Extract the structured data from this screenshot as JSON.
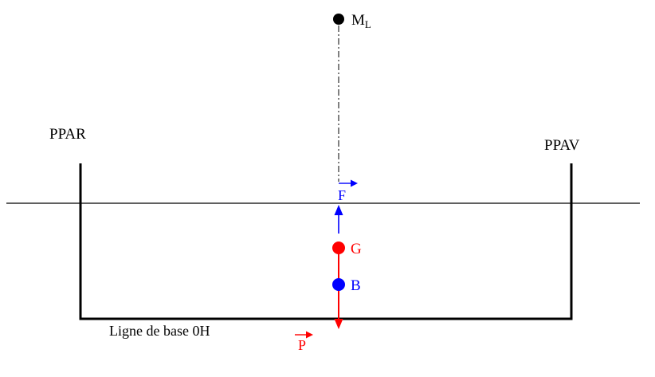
{
  "diagram": {
    "labels": {
      "metacentre": {
        "main": "M",
        "sub": "L"
      },
      "ppar": "PPAR",
      "ppav": "PPAV",
      "buoyancy_force": "F",
      "gravity_center": "G",
      "buoyancy_center": "B",
      "weight": "P",
      "baseline": "Ligne de base 0H"
    },
    "colors": {
      "hull": "#000000",
      "force": "#0000ff",
      "weight": "#ff0000"
    }
  }
}
